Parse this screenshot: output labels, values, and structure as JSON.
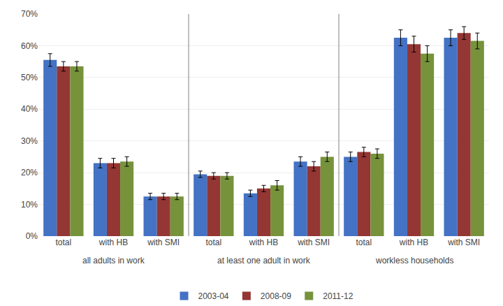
{
  "chart_data": {
    "type": "bar",
    "categories": [
      "total",
      "with HB",
      "with SMI",
      "total",
      "with HB",
      "with SMI",
      "total",
      "with HB",
      "with SMI"
    ],
    "series": [
      {
        "name": "2003-04",
        "color": "#4472C4",
        "values": [
          55.5,
          23.0,
          12.5,
          19.5,
          13.5,
          23.5,
          25.0,
          62.5,
          62.5
        ],
        "errors": [
          2.0,
          1.5,
          1.0,
          1.0,
          1.0,
          1.5,
          1.5,
          2.5,
          2.5
        ]
      },
      {
        "name": "2008-09",
        "color": "#943634",
        "values": [
          53.5,
          23.0,
          12.5,
          19.0,
          15.0,
          22.0,
          26.5,
          60.5,
          64.0
        ],
        "errors": [
          1.5,
          1.5,
          1.0,
          1.0,
          1.0,
          1.5,
          1.5,
          2.5,
          2.0
        ]
      },
      {
        "name": "2011-12",
        "color": "#76933C",
        "values": [
          53.5,
          23.5,
          12.5,
          19.0,
          16.0,
          25.0,
          26.0,
          57.5,
          61.5
        ],
        "errors": [
          1.5,
          1.5,
          1.0,
          1.0,
          1.5,
          1.5,
          1.5,
          2.5,
          2.5
        ]
      }
    ],
    "annotations": [
      {
        "text": "all adults in work",
        "x": 1
      },
      {
        "text": "at least one adult in work",
        "x": 4
      },
      {
        "text": "workless households",
        "x": 7
      }
    ],
    "ylim": [
      0,
      70
    ],
    "yticks": [
      {
        "value": 0,
        "label": "0%"
      },
      {
        "value": 10,
        "label": "10%"
      },
      {
        "value": 20,
        "label": "20%"
      },
      {
        "value": 30,
        "label": "30%"
      },
      {
        "value": 40,
        "label": "40%"
      },
      {
        "value": 50,
        "label": "50%"
      },
      {
        "value": 60,
        "label": "60%"
      },
      {
        "value": 70,
        "label": "70%"
      }
    ],
    "grid": true,
    "legend": "bottom"
  }
}
